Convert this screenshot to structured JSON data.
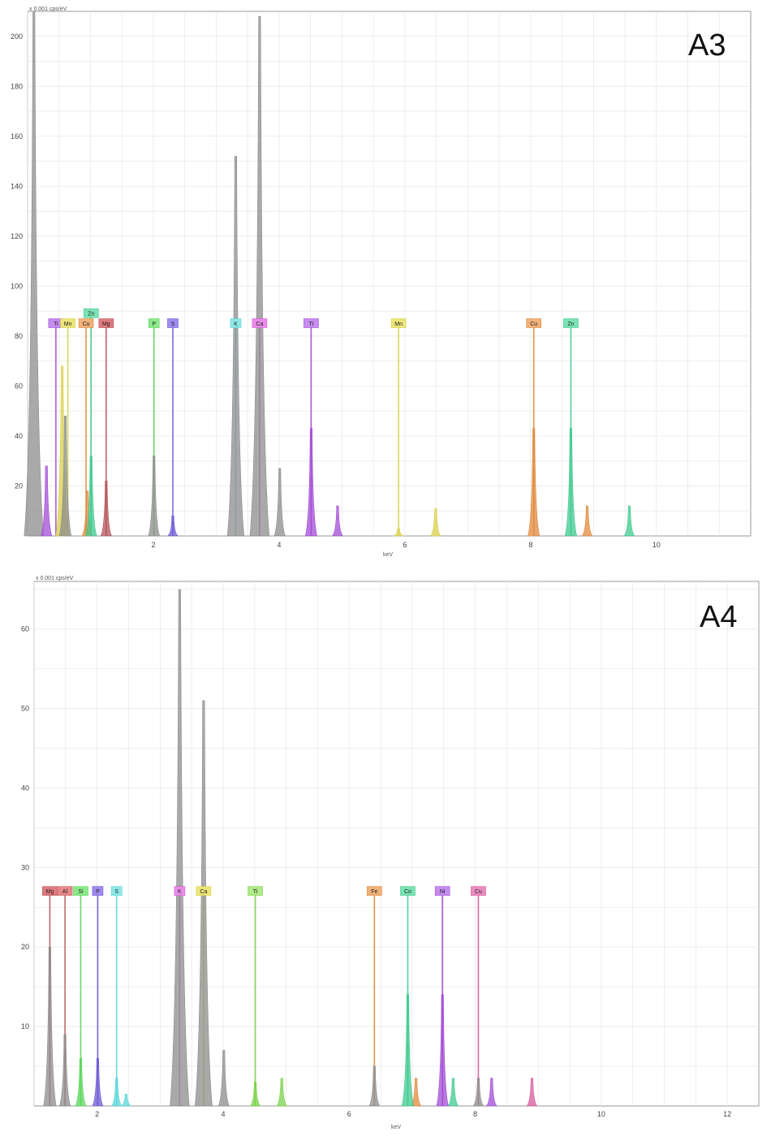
{
  "chart_data": [
    {
      "type": "area",
      "title": "A3",
      "xlabel": "keV",
      "ylabel": "x 0.001 cps/eV",
      "xlim": [
        0,
        11.5
      ],
      "ylim": [
        0,
        210
      ],
      "xticks": [
        2,
        4,
        6,
        8,
        10
      ],
      "yticks": [
        20,
        40,
        60,
        80,
        100,
        120,
        140,
        160,
        180,
        200
      ],
      "grid": true,
      "spectrum_peaks": [
        {
          "x": 0.1,
          "height": 210,
          "color": "#8c8c8c"
        },
        {
          "x": 0.3,
          "height": 28,
          "color": "#a24cd6"
        },
        {
          "x": 0.55,
          "height": 68,
          "color": "#d8d04a"
        },
        {
          "x": 0.6,
          "height": 48,
          "color": "#8c8c8c"
        },
        {
          "x": 0.95,
          "height": 18,
          "color": "#e0893c"
        },
        {
          "x": 1.01,
          "height": 32,
          "color": "#3fc98f"
        },
        {
          "x": 1.25,
          "height": 22,
          "color": "#b4545a"
        },
        {
          "x": 2.01,
          "height": 32,
          "color": "#8c8c8c"
        },
        {
          "x": 2.31,
          "height": 8,
          "color": "#6c5ad6"
        },
        {
          "x": 3.31,
          "height": 152,
          "color": "#8c8c8c"
        },
        {
          "x": 3.69,
          "height": 208,
          "color": "#8c8c8c"
        },
        {
          "x": 4.01,
          "height": 27,
          "color": "#8c8c8c"
        },
        {
          "x": 4.51,
          "height": 43,
          "color": "#a24cd6"
        },
        {
          "x": 4.93,
          "height": 12,
          "color": "#a24cd6"
        },
        {
          "x": 5.9,
          "height": 3,
          "color": "#d8d04a"
        },
        {
          "x": 6.49,
          "height": 11,
          "color": "#d8d04a"
        },
        {
          "x": 8.05,
          "height": 43,
          "color": "#e0893c"
        },
        {
          "x": 8.9,
          "height": 12,
          "color": "#e0893c"
        },
        {
          "x": 8.64,
          "height": 43,
          "color": "#3fc98f"
        },
        {
          "x": 9.57,
          "height": 12,
          "color": "#3fc98f"
        }
      ],
      "element_markers": [
        {
          "label": "Ti",
          "x": 0.45,
          "color": "#a24cd6",
          "tag_color": "#c58cf0",
          "top": 85
        },
        {
          "label": "Mn",
          "x": 0.64,
          "color": "#d8d04a",
          "tag_color": "#ece67a",
          "top": 85
        },
        {
          "label": "Cu",
          "x": 0.93,
          "color": "#e0893c",
          "tag_color": "#f0b27a",
          "top": 85
        },
        {
          "label": "Zn",
          "x": 1.01,
          "color": "#3fc98f",
          "tag_color": "#7ce3b4",
          "top": 89
        },
        {
          "label": "Mg",
          "x": 1.25,
          "color": "#b4545a",
          "tag_color": "#e07a80",
          "top": 85
        },
        {
          "label": "P",
          "x": 2.01,
          "color": "#5ad65a",
          "tag_color": "#8aea8a",
          "top": 85
        },
        {
          "label": "S",
          "x": 2.31,
          "color": "#6c5ad6",
          "tag_color": "#a08cf0",
          "top": 85
        },
        {
          "label": "K",
          "x": 3.31,
          "color": "#5ad6d6",
          "tag_color": "#8ee8e8",
          "top": 85
        },
        {
          "label": "Ca",
          "x": 3.69,
          "color": "#d65ad6",
          "tag_color": "#ea8cea",
          "top": 85
        },
        {
          "label": "Ti",
          "x": 4.51,
          "color": "#a24cd6",
          "tag_color": "#c58cf0",
          "top": 85
        },
        {
          "label": "Mn",
          "x": 5.9,
          "color": "#d8d04a",
          "tag_color": "#ece67a",
          "top": 85
        },
        {
          "label": "Cu",
          "x": 8.05,
          "color": "#e0893c",
          "tag_color": "#f0b27a",
          "top": 85
        },
        {
          "label": "Zn",
          "x": 8.64,
          "color": "#3fc98f",
          "tag_color": "#7ce3b4",
          "top": 85
        }
      ]
    },
    {
      "type": "area",
      "title": "A4",
      "xlabel": "keV",
      "ylabel": "x 0.001 cps/eV",
      "xlim": [
        1,
        12.5
      ],
      "ylim": [
        0,
        66
      ],
      "xticks": [
        2,
        4,
        6,
        8,
        10,
        12
      ],
      "yticks": [
        10,
        20,
        30,
        40,
        50,
        60
      ],
      "grid": true,
      "spectrum_peaks": [
        {
          "x": 1.25,
          "height": 20,
          "color": "#8c8c8c"
        },
        {
          "x": 1.49,
          "height": 9,
          "color": "#8c8c8c"
        },
        {
          "x": 1.74,
          "height": 6,
          "color": "#5ad65a"
        },
        {
          "x": 2.01,
          "height": 6,
          "color": "#6c5ad6"
        },
        {
          "x": 2.31,
          "height": 3.5,
          "color": "#5ad6d6"
        },
        {
          "x": 2.46,
          "height": 1.5,
          "color": "#5ad6d6"
        },
        {
          "x": 3.31,
          "height": 65,
          "color": "#8c8c8c"
        },
        {
          "x": 3.69,
          "height": 51,
          "color": "#8c8c8c"
        },
        {
          "x": 4.01,
          "height": 7,
          "color": "#8c8c8c"
        },
        {
          "x": 4.51,
          "height": 3,
          "color": "#7bd24a"
        },
        {
          "x": 4.93,
          "height": 3.5,
          "color": "#7bd24a"
        },
        {
          "x": 6.4,
          "height": 5,
          "color": "#8c8c8c"
        },
        {
          "x": 7.06,
          "height": 3.5,
          "color": "#e0893c"
        },
        {
          "x": 6.93,
          "height": 14,
          "color": "#3fc98f"
        },
        {
          "x": 7.65,
          "height": 3.5,
          "color": "#3fc98f"
        },
        {
          "x": 7.48,
          "height": 14,
          "color": "#a24cd6"
        },
        {
          "x": 8.26,
          "height": 3.5,
          "color": "#a24cd6"
        },
        {
          "x": 8.05,
          "height": 3.5,
          "color": "#8c8c8c"
        },
        {
          "x": 8.9,
          "height": 3.5,
          "color": "#d65a9a"
        }
      ],
      "element_markers": [
        {
          "label": "Mg",
          "x": 1.25,
          "color": "#b4545a",
          "tag_color": "#e07a80",
          "top": 27
        },
        {
          "label": "Al",
          "x": 1.49,
          "color": "#c46060",
          "tag_color": "#e88a8a",
          "top": 27
        },
        {
          "label": "Si",
          "x": 1.74,
          "color": "#5ad65a",
          "tag_color": "#8aea8a",
          "top": 27
        },
        {
          "label": "P",
          "x": 2.01,
          "color": "#6c5ad6",
          "tag_color": "#a08cf0",
          "top": 27
        },
        {
          "label": "S",
          "x": 2.31,
          "color": "#5ad6d6",
          "tag_color": "#8ee8e8",
          "top": 27
        },
        {
          "label": "K",
          "x": 3.31,
          "color": "#d65ad6",
          "tag_color": "#ea8cea",
          "top": 27
        },
        {
          "label": "Ca",
          "x": 3.69,
          "color": "#d8d04a",
          "tag_color": "#ece67a",
          "top": 27
        },
        {
          "label": "Ti",
          "x": 4.51,
          "color": "#7bd24a",
          "tag_color": "#b0ea8a",
          "top": 27
        },
        {
          "label": "Fe",
          "x": 6.4,
          "color": "#e0893c",
          "tag_color": "#f0b27a",
          "top": 27
        },
        {
          "label": "Co",
          "x": 6.93,
          "color": "#3fc98f",
          "tag_color": "#7ce3b4",
          "top": 27
        },
        {
          "label": "Ni",
          "x": 7.48,
          "color": "#a24cd6",
          "tag_color": "#c58cf0",
          "top": 27
        },
        {
          "label": "Cu",
          "x": 8.05,
          "color": "#d65a9a",
          "tag_color": "#ea8cc0",
          "top": 27
        }
      ]
    }
  ]
}
